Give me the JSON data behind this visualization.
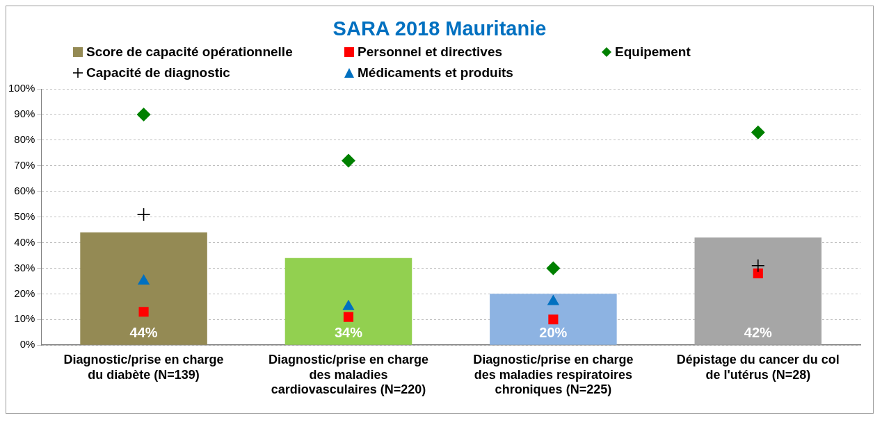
{
  "chart_data": {
    "type": "bar",
    "title": "SARA 2018 Mauritanie",
    "categories": [
      "Diagnostic/prise en charge du diabète (N=139)",
      "Diagnostic/prise en charge des maladies cardiovasculaires (N=220)",
      "Diagnostic/prise en charge des maladies respiratoires chroniques (N=225)",
      "Dépistage du cancer du col de l'utérus (N=28)"
    ],
    "series": [
      {
        "name": "Score de capacité opérationnelle",
        "colors": [
          "#948a54",
          "#92d050",
          "#8db3e2",
          "#a6a6a6"
        ],
        "values": [
          44,
          34,
          20,
          42
        ],
        "value_labels": [
          "44%",
          "34%",
          "20%",
          "42%"
        ]
      },
      {
        "name": "Capacité de diagnostic",
        "type": "scatter",
        "marker": "cross",
        "color": "#000000",
        "values": [
          51,
          null,
          null,
          31
        ]
      },
      {
        "name": "Personnel et directives",
        "type": "scatter",
        "marker": "square",
        "color": "#ff0000",
        "values": [
          13,
          11,
          10,
          28
        ]
      },
      {
        "name": "Médicaments et produits",
        "type": "scatter",
        "marker": "triangle",
        "color": "#0070c0",
        "values": [
          25,
          15,
          17,
          null
        ]
      },
      {
        "name": "Equipement",
        "type": "scatter",
        "marker": "diamond",
        "color": "#008000",
        "values": [
          90,
          72,
          30,
          83
        ]
      }
    ],
    "ylim": [
      0,
      100
    ],
    "yticks": [
      {
        "value": 0,
        "label": "0%"
      },
      {
        "value": 10,
        "label": "10%"
      },
      {
        "value": 20,
        "label": "20%"
      },
      {
        "value": 30,
        "label": "30%"
      },
      {
        "value": 40,
        "label": "40%"
      },
      {
        "value": 50,
        "label": "50%"
      },
      {
        "value": 60,
        "label": "60%"
      },
      {
        "value": 70,
        "label": "70%"
      },
      {
        "value": 80,
        "label": "80%"
      },
      {
        "value": 90,
        "label": "90%"
      },
      {
        "value": 100,
        "label": "100%"
      }
    ],
    "grid": "y",
    "legend": "top"
  }
}
